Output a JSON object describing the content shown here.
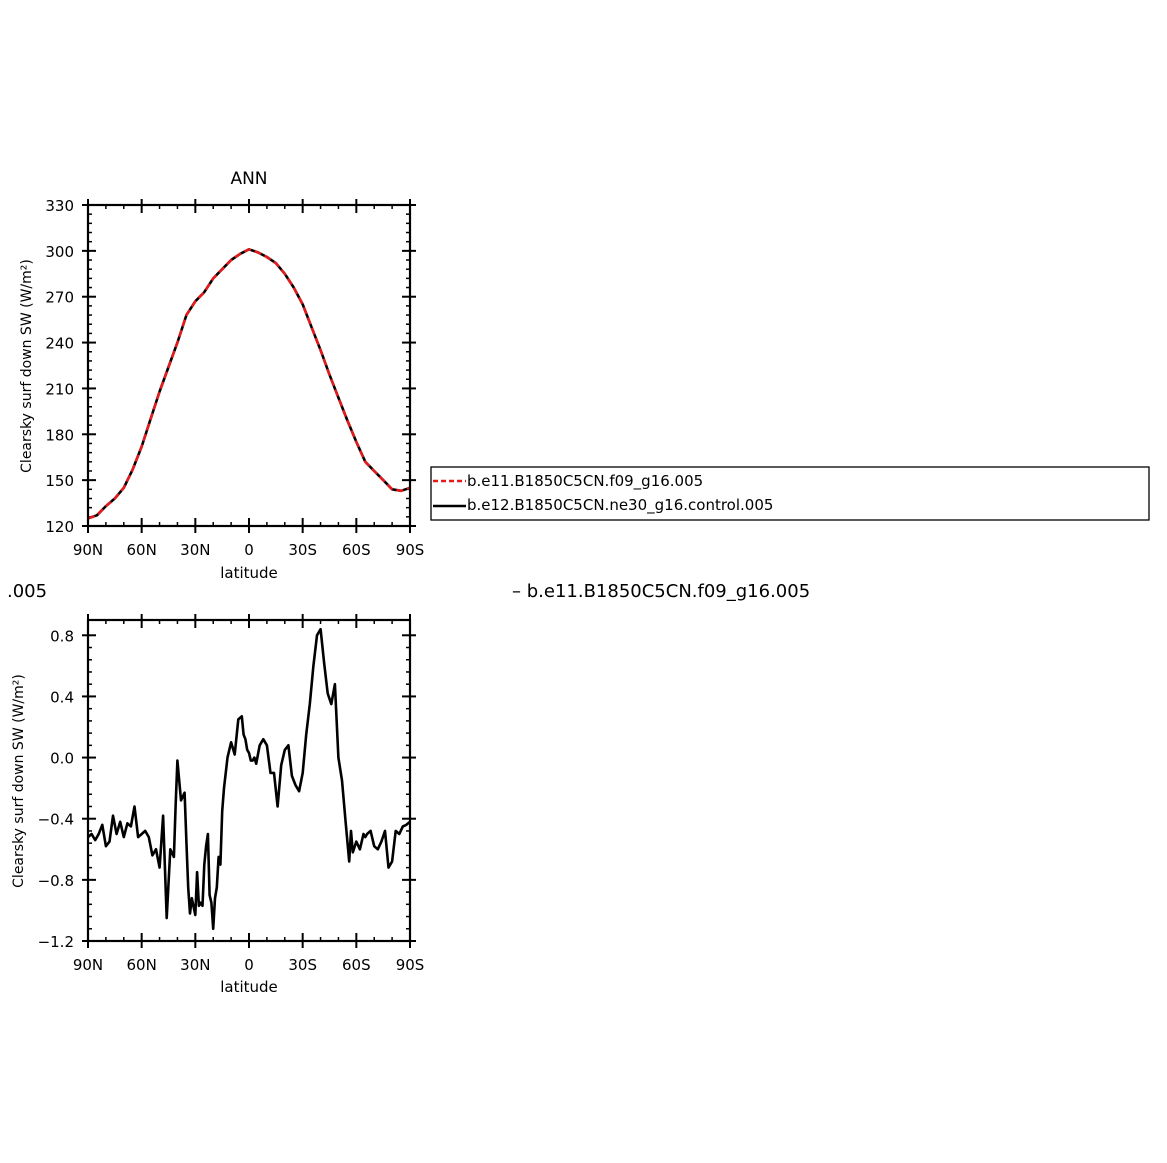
{
  "colors": {
    "series_a": "#e41a1c",
    "series_b": "#000000",
    "axis": "#000000"
  },
  "legend": {
    "placement": "right of top chart, boxed",
    "items": [
      {
        "label": "b.e11.B1850C5CN.f09_g16.005",
        "style": "dashed",
        "color": "#e41a1c"
      },
      {
        "label": "b.e12.B1850C5CN.ne30_g16.control.005",
        "style": "solid",
        "color": "#000000"
      }
    ]
  },
  "bottom_header": {
    "left_fragment": ".005",
    "right_fragment": "– b.e11.B1850C5CN.f09_g16.005"
  },
  "chart_data": [
    {
      "type": "line",
      "title": "ANN",
      "xlabel": "latitude",
      "ylabel": "Clearsky surf down SW (W/m²)",
      "xlim": [
        -90,
        90
      ],
      "ylim": [
        120,
        330
      ],
      "x_ticks": [
        -90,
        -60,
        -30,
        0,
        30,
        60,
        90
      ],
      "x_tick_labels": [
        "90N",
        "60N",
        "30N",
        "0",
        "30S",
        "60S",
        "90S"
      ],
      "y_ticks": [
        120,
        150,
        180,
        210,
        240,
        270,
        300,
        330
      ],
      "y_tick_labels": [
        "120",
        "150",
        "180",
        "210",
        "240",
        "270",
        "300",
        "330"
      ],
      "grid": false,
      "series": [
        {
          "name": "b.e11.B1850C5CN.f09_g16.005",
          "style": "dashed",
          "color": "#e41a1c",
          "x": [
            -90,
            -85,
            -80,
            -75,
            -70,
            -65,
            -60,
            -55,
            -50,
            -45,
            -40,
            -35,
            -30,
            -25,
            -20,
            -15,
            -10,
            -5,
            0,
            5,
            10,
            15,
            20,
            25,
            30,
            35,
            40,
            45,
            50,
            55,
            60,
            65,
            70,
            75,
            80,
            85,
            90
          ],
          "y": [
            125,
            127,
            133,
            138,
            145,
            157,
            172,
            190,
            208,
            224,
            240,
            258,
            267,
            273,
            282,
            288,
            294,
            298,
            301,
            299,
            296,
            292,
            285,
            276,
            265,
            250,
            235,
            219,
            204,
            189,
            175,
            162,
            156,
            150,
            144,
            143,
            145
          ]
        },
        {
          "name": "b.e12.B1850C5CN.ne30_g16.control.005",
          "style": "solid",
          "color": "#000000",
          "x": [
            -90,
            -85,
            -80,
            -75,
            -70,
            -65,
            -60,
            -55,
            -50,
            -45,
            -40,
            -35,
            -30,
            -25,
            -20,
            -15,
            -10,
            -5,
            0,
            5,
            10,
            15,
            20,
            25,
            30,
            35,
            40,
            45,
            50,
            55,
            60,
            65,
            70,
            75,
            80,
            85,
            90
          ],
          "y": [
            125,
            127,
            133,
            138,
            145,
            157,
            172,
            190,
            208,
            224,
            240,
            258,
            267,
            273,
            282,
            288,
            294,
            298,
            301,
            299,
            296,
            292,
            285,
            276,
            265,
            250,
            235,
            219,
            204,
            189,
            175,
            162,
            156,
            150,
            144,
            143,
            145
          ]
        }
      ]
    },
    {
      "type": "line",
      "title": "",
      "xlabel": "latitude",
      "ylabel": "Clearsky surf down SW (W/m²)",
      "xlim": [
        -90,
        90
      ],
      "ylim": [
        -1.2,
        0.9
      ],
      "x_ticks": [
        -90,
        -60,
        -30,
        0,
        30,
        60,
        90
      ],
      "x_tick_labels": [
        "90N",
        "60N",
        "30N",
        "0",
        "30S",
        "60S",
        "90S"
      ],
      "y_ticks": [
        -1.2,
        -0.8,
        -0.4,
        0.0,
        0.4,
        0.8
      ],
      "y_tick_labels": [
        "−1.2",
        "−0.8",
        "−0.4",
        "0.0",
        "0.4",
        "0.8"
      ],
      "grid": false,
      "series": [
        {
          "name": "",
          "style": "solid",
          "color": "#000000",
          "x": [
            -90,
            -88,
            -86,
            -84,
            -82,
            -80,
            -78,
            -76,
            -74,
            -72,
            -70,
            -68,
            -66,
            -64,
            -62,
            -60,
            -58,
            -56,
            -54,
            -52,
            -50,
            -48,
            -46,
            -44,
            -42,
            -41,
            -40,
            -38,
            -36,
            -35,
            -34,
            -33,
            -32,
            -30,
            -29,
            -28,
            -27,
            -26,
            -25,
            -24,
            -23,
            -22,
            -21,
            -20,
            -19,
            -18,
            -17,
            -16,
            -15,
            -14,
            -12,
            -10,
            -8,
            -6,
            -4,
            -3,
            -2,
            -1,
            0,
            1,
            2,
            3,
            4,
            6,
            8,
            10,
            12,
            14,
            16,
            18,
            20,
            22,
            24,
            26,
            28,
            30,
            32,
            34,
            36,
            38,
            40,
            42,
            44,
            46,
            48,
            50,
            52,
            54,
            56,
            57,
            58,
            60,
            62,
            64,
            65,
            66,
            68,
            70,
            72,
            74,
            76,
            78,
            80,
            82,
            84,
            86,
            88,
            90
          ],
          "y": [
            -0.52,
            -0.5,
            -0.54,
            -0.5,
            -0.44,
            -0.58,
            -0.55,
            -0.38,
            -0.5,
            -0.42,
            -0.52,
            -0.43,
            -0.45,
            -0.32,
            -0.52,
            -0.5,
            -0.48,
            -0.52,
            -0.64,
            -0.6,
            -0.72,
            -0.38,
            -1.05,
            -0.6,
            -0.65,
            -0.3,
            -0.02,
            -0.28,
            -0.23,
            -0.55,
            -0.85,
            -1.02,
            -0.92,
            -1.03,
            -0.75,
            -0.97,
            -0.95,
            -0.97,
            -0.7,
            -0.58,
            -0.5,
            -0.9,
            -0.95,
            -1.12,
            -0.92,
            -0.85,
            -0.65,
            -0.7,
            -0.35,
            -0.2,
            0.0,
            0.1,
            0.02,
            0.25,
            0.27,
            0.15,
            0.12,
            0.05,
            0.03,
            -0.02,
            -0.02,
            0.0,
            -0.04,
            0.08,
            0.12,
            0.08,
            -0.1,
            -0.1,
            -0.32,
            -0.05,
            0.05,
            0.08,
            -0.12,
            -0.18,
            -0.22,
            -0.1,
            0.15,
            0.35,
            0.6,
            0.8,
            0.84,
            0.62,
            0.42,
            0.35,
            0.48,
            0.0,
            -0.15,
            -0.42,
            -0.68,
            -0.48,
            -0.62,
            -0.55,
            -0.6,
            -0.5,
            -0.52,
            -0.5,
            -0.48,
            -0.58,
            -0.6,
            -0.55,
            -0.48,
            -0.72,
            -0.68,
            -0.48,
            -0.5,
            -0.45,
            -0.44,
            -0.42
          ]
        }
      ]
    }
  ]
}
